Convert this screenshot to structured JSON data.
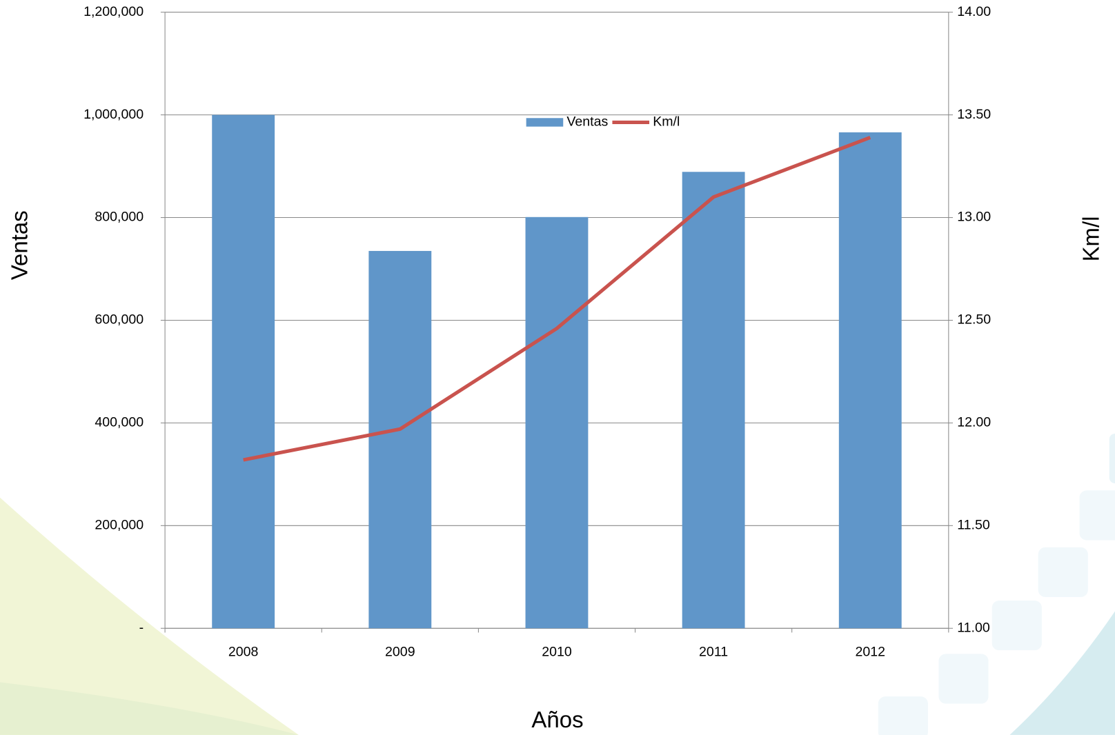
{
  "chart_data": {
    "type": "bar",
    "x_label": "Años",
    "y_label": "Ventas",
    "y2_label": "Km/l",
    "categories": [
      "2008",
      "2009",
      "2010",
      "2011",
      "2012"
    ],
    "series": [
      {
        "name": "Ventas",
        "color": "#6096c9",
        "type": "bar",
        "values": [
          1000000,
          735000,
          801000,
          889000,
          966000
        ]
      },
      {
        "name": "Km/l",
        "color": "#c9534e",
        "type": "line",
        "axis": "y2",
        "values": [
          11.82,
          11.97,
          12.46,
          13.1,
          13.39
        ]
      }
    ],
    "ylim": [
      0,
      1200000
    ],
    "yticks": [
      {
        "value": 0,
        "label": "-"
      },
      {
        "value": 200000,
        "label": "200,000"
      },
      {
        "value": 400000,
        "label": "400,000"
      },
      {
        "value": 600000,
        "label": "600,000"
      },
      {
        "value": 800000,
        "label": "800,000"
      },
      {
        "value": 1000000,
        "label": "1,000,000"
      },
      {
        "value": 1200000,
        "label": "1,200,000"
      }
    ],
    "y2lim": [
      11,
      14
    ],
    "y2ticks": [
      {
        "value": 11,
        "label": "11.00"
      },
      {
        "value": 11.5,
        "label": "11.50"
      },
      {
        "value": 12,
        "label": "12.00"
      },
      {
        "value": 12.5,
        "label": "12.50"
      },
      {
        "value": 13,
        "label": "13.00"
      },
      {
        "value": 13.5,
        "label": "13.50"
      },
      {
        "value": 14,
        "label": "14.00"
      }
    ],
    "grid": true,
    "legend": "top"
  }
}
